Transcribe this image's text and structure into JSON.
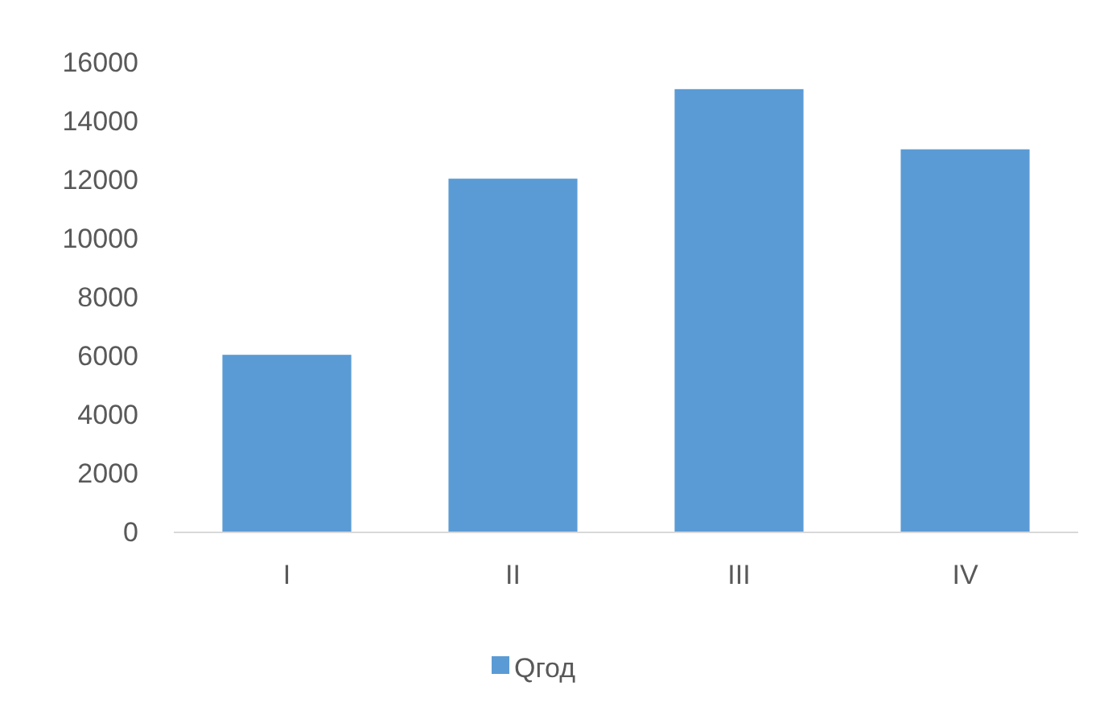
{
  "chart_data": {
    "type": "bar",
    "categories": [
      "I",
      "II",
      "III",
      "IV"
    ],
    "series": [
      {
        "name": "Qгод",
        "color": "#5b9bd5",
        "values": [
          6050,
          12050,
          15100,
          13050
        ]
      }
    ],
    "ylim": [
      0,
      16000
    ],
    "yticks": [
      0,
      2000,
      4000,
      6000,
      8000,
      10000,
      12000,
      14000,
      16000
    ],
    "grid": false,
    "legend": "bottom"
  }
}
